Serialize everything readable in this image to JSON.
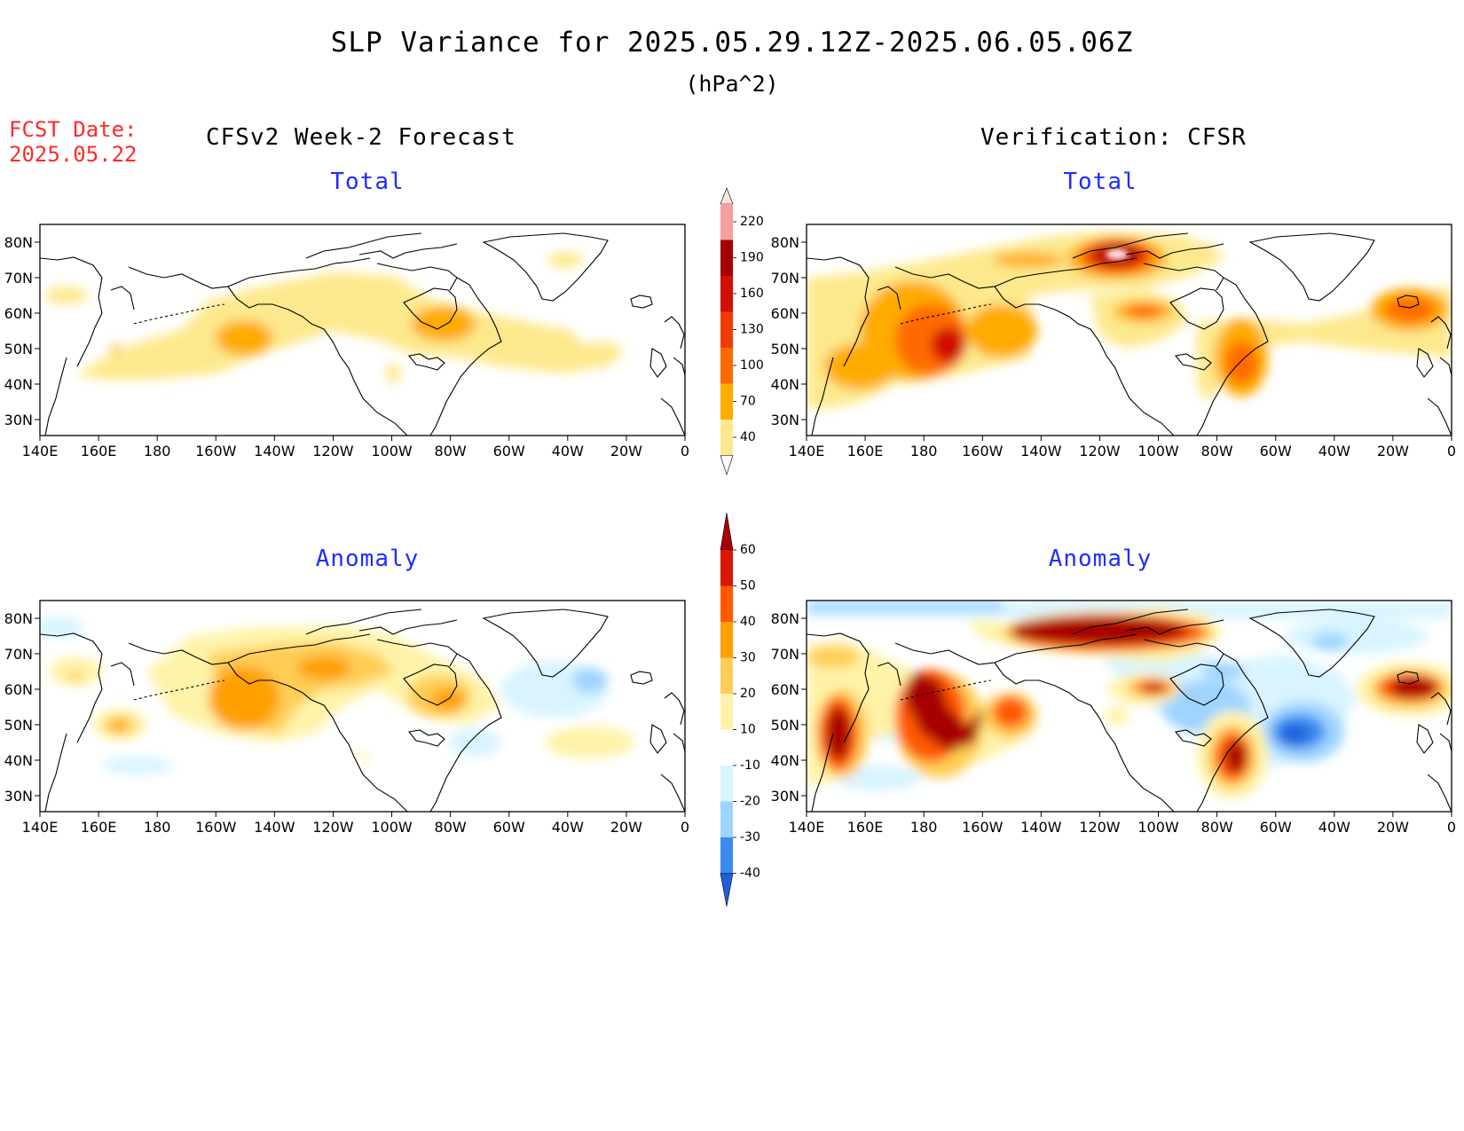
{
  "header": {
    "title": "SLP Variance for 2025.05.29.12Z-2025.06.05.06Z",
    "units": "(hPa^2)",
    "fcst_label": "FCST Date:",
    "fcst_date": "2025.05.22"
  },
  "columns": {
    "left": "CFSv2 Week-2 Forecast",
    "right": "Verification: CFSR"
  },
  "panels": {
    "forecast_total": "Total",
    "verification_total": "Total",
    "forecast_anomaly": "Anomaly",
    "verification_anomaly": "Anomaly"
  },
  "axes": {
    "lon_labels": [
      "140E",
      "160E",
      "180",
      "160W",
      "140W",
      "120W",
      "100W",
      "80W",
      "60W",
      "40W",
      "20W",
      "0"
    ],
    "lat_labels": [
      "80N",
      "70N",
      "60N",
      "50N",
      "40N",
      "30N"
    ]
  },
  "colorbars": {
    "total": {
      "levels": [
        "40",
        "70",
        "100",
        "130",
        "160",
        "190",
        "220"
      ],
      "colors": [
        "#fde98d",
        "#ffab00",
        "#ff6a00",
        "#f03b00",
        "#d01000",
        "#a80000",
        "#f4a0a0",
        "#ffe4e4"
      ]
    },
    "anomaly": {
      "levels": [
        "60",
        "50",
        "40",
        "30",
        "20",
        "10",
        "-10",
        "-20",
        "-30",
        "-40"
      ],
      "colors": [
        "#a80000",
        "#d81800",
        "#ff5a00",
        "#ffa000",
        "#ffcd55",
        "#fff3a8",
        "#ffffff",
        "#d8f4ff",
        "#9ed4ff",
        "#3a8af0",
        "#1f5ed8"
      ]
    }
  },
  "colors": {
    "fcst_text": "#ff2a2a",
    "panel_title": "#1f2dff"
  }
}
